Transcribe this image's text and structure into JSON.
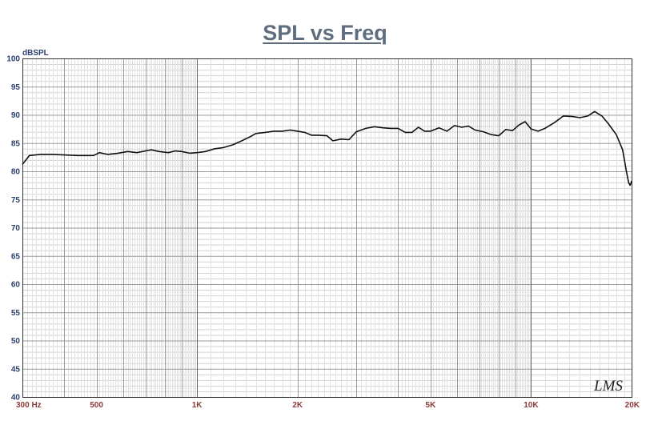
{
  "chart_data": {
    "type": "line",
    "title": "SPL vs Freq",
    "ylabel": "dBSPL",
    "xlabel": "",
    "x_scale": "log",
    "xlim": [
      300,
      20000
    ],
    "ylim": [
      40,
      100
    ],
    "grid": true,
    "yticks": [
      "100",
      "95",
      "90",
      "85",
      "80",
      "75",
      "70",
      "65",
      "60",
      "55",
      "50",
      "45",
      "40"
    ],
    "xticks": [
      {
        "value": 300,
        "label": "300 Hz"
      },
      {
        "value": 500,
        "label": "500"
      },
      {
        "value": 1000,
        "label": "1K"
      },
      {
        "value": 2000,
        "label": "2K"
      },
      {
        "value": 5000,
        "label": "5K"
      },
      {
        "value": 10000,
        "label": "10K"
      },
      {
        "value": 20000,
        "label": "20K"
      }
    ],
    "series": [
      {
        "color": "#111111",
        "points": [
          [
            300,
            81.2
          ],
          [
            315,
            82.8
          ],
          [
            340,
            83.0
          ],
          [
            370,
            83.0
          ],
          [
            400,
            82.9
          ],
          [
            440,
            82.8
          ],
          [
            470,
            82.8
          ],
          [
            490,
            82.8
          ],
          [
            510,
            83.3
          ],
          [
            540,
            83.0
          ],
          [
            580,
            83.2
          ],
          [
            620,
            83.5
          ],
          [
            660,
            83.3
          ],
          [
            700,
            83.6
          ],
          [
            730,
            83.8
          ],
          [
            770,
            83.5
          ],
          [
            820,
            83.3
          ],
          [
            860,
            83.6
          ],
          [
            900,
            83.5
          ],
          [
            950,
            83.2
          ],
          [
            1000,
            83.3
          ],
          [
            1060,
            83.5
          ],
          [
            1130,
            84.0
          ],
          [
            1200,
            84.2
          ],
          [
            1280,
            84.7
          ],
          [
            1350,
            85.3
          ],
          [
            1450,
            86.2
          ],
          [
            1500,
            86.7
          ],
          [
            1600,
            86.9
          ],
          [
            1700,
            87.1
          ],
          [
            1800,
            87.1
          ],
          [
            1900,
            87.3
          ],
          [
            2000,
            87.1
          ],
          [
            2100,
            86.9
          ],
          [
            2200,
            86.4
          ],
          [
            2300,
            86.4
          ],
          [
            2450,
            86.3
          ],
          [
            2550,
            85.4
          ],
          [
            2700,
            85.7
          ],
          [
            2850,
            85.6
          ],
          [
            3000,
            87.0
          ],
          [
            3200,
            87.6
          ],
          [
            3400,
            87.9
          ],
          [
            3600,
            87.7
          ],
          [
            3800,
            87.6
          ],
          [
            4000,
            87.6
          ],
          [
            4200,
            86.9
          ],
          [
            4400,
            86.9
          ],
          [
            4600,
            87.8
          ],
          [
            4800,
            87.1
          ],
          [
            5000,
            87.1
          ],
          [
            5300,
            87.7
          ],
          [
            5600,
            87.1
          ],
          [
            5900,
            88.1
          ],
          [
            6200,
            87.8
          ],
          [
            6500,
            88.0
          ],
          [
            6800,
            87.3
          ],
          [
            7200,
            87.0
          ],
          [
            7600,
            86.5
          ],
          [
            8000,
            86.3
          ],
          [
            8400,
            87.4
          ],
          [
            8800,
            87.2
          ],
          [
            9200,
            88.2
          ],
          [
            9600,
            88.8
          ],
          [
            10000,
            87.5
          ],
          [
            10500,
            87.1
          ],
          [
            11000,
            87.6
          ],
          [
            11800,
            88.7
          ],
          [
            12500,
            89.8
          ],
          [
            13300,
            89.7
          ],
          [
            14000,
            89.5
          ],
          [
            14800,
            89.8
          ],
          [
            15500,
            90.6
          ],
          [
            16300,
            89.8
          ],
          [
            17000,
            88.5
          ],
          [
            18000,
            86.5
          ],
          [
            18800,
            83.8
          ],
          [
            19300,
            80.0
          ],
          [
            19600,
            78.0
          ],
          [
            19800,
            77.5
          ],
          [
            19950,
            78.0
          ],
          [
            20000,
            78.3
          ]
        ]
      }
    ]
  },
  "logo_text": "LMS"
}
